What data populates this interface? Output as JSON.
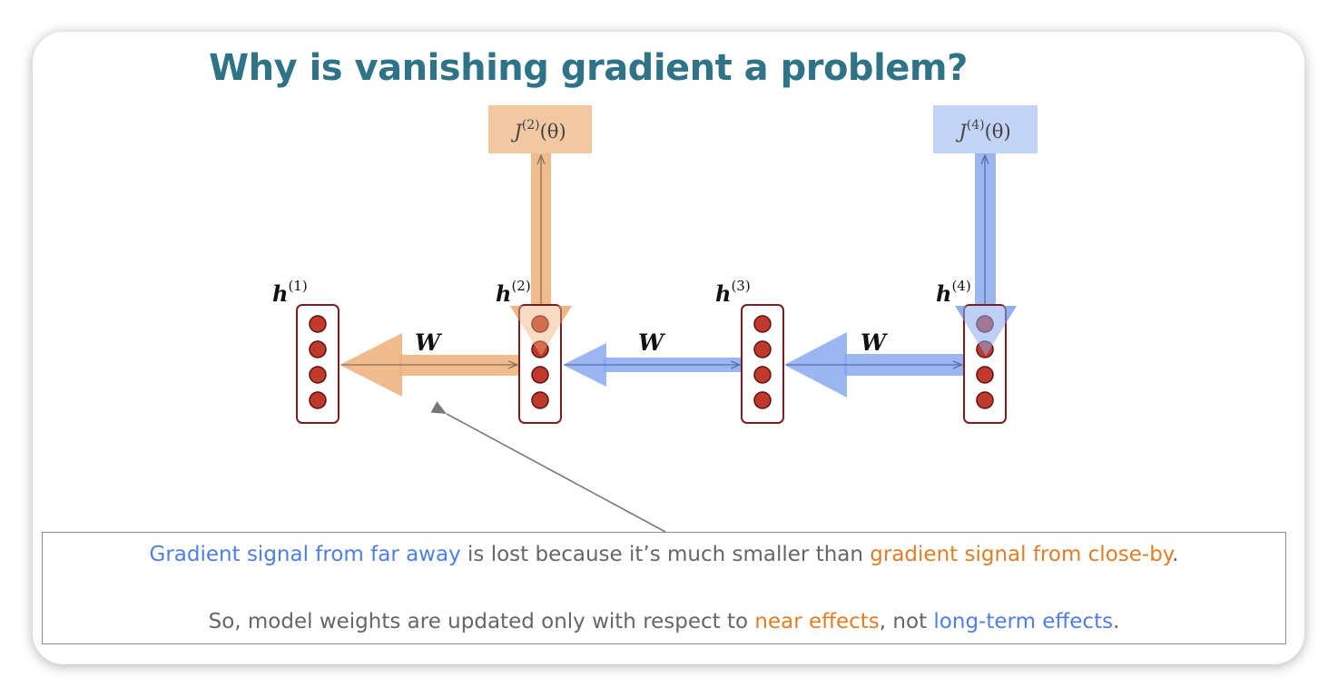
{
  "title": "Why is vanishing gradient a problem?",
  "loss_boxes": [
    {
      "label": "J",
      "sup": "(2)",
      "arg": "(θ)",
      "color": "#f1c8a2"
    },
    {
      "label": "J",
      "sup": "(4)",
      "arg": "(θ)",
      "color": "#c2d3f6"
    }
  ],
  "hidden_states": [
    {
      "label": "h",
      "sup": "(1)"
    },
    {
      "label": "h",
      "sup": "(2)"
    },
    {
      "label": "h",
      "sup": "(3)"
    },
    {
      "label": "h",
      "sup": "(4)"
    }
  ],
  "weight_label": "W",
  "caption": {
    "line1": {
      "far": "Gradient signal from far away",
      "middle": " is lost because it’s much smaller than ",
      "near": "gradient signal from close-by",
      "end": "."
    },
    "line2": {
      "start": "So, model weights are updated only with respect to ",
      "near": "near effects",
      "middle": ", not ",
      "long": "long-term effects",
      "end": "."
    }
  },
  "colors": {
    "title": "#2f7388",
    "near_orange": "#e07e25",
    "far_blue": "#4f7fe0",
    "neuron": "#c0392b",
    "node_border": "#7a1e1e"
  }
}
